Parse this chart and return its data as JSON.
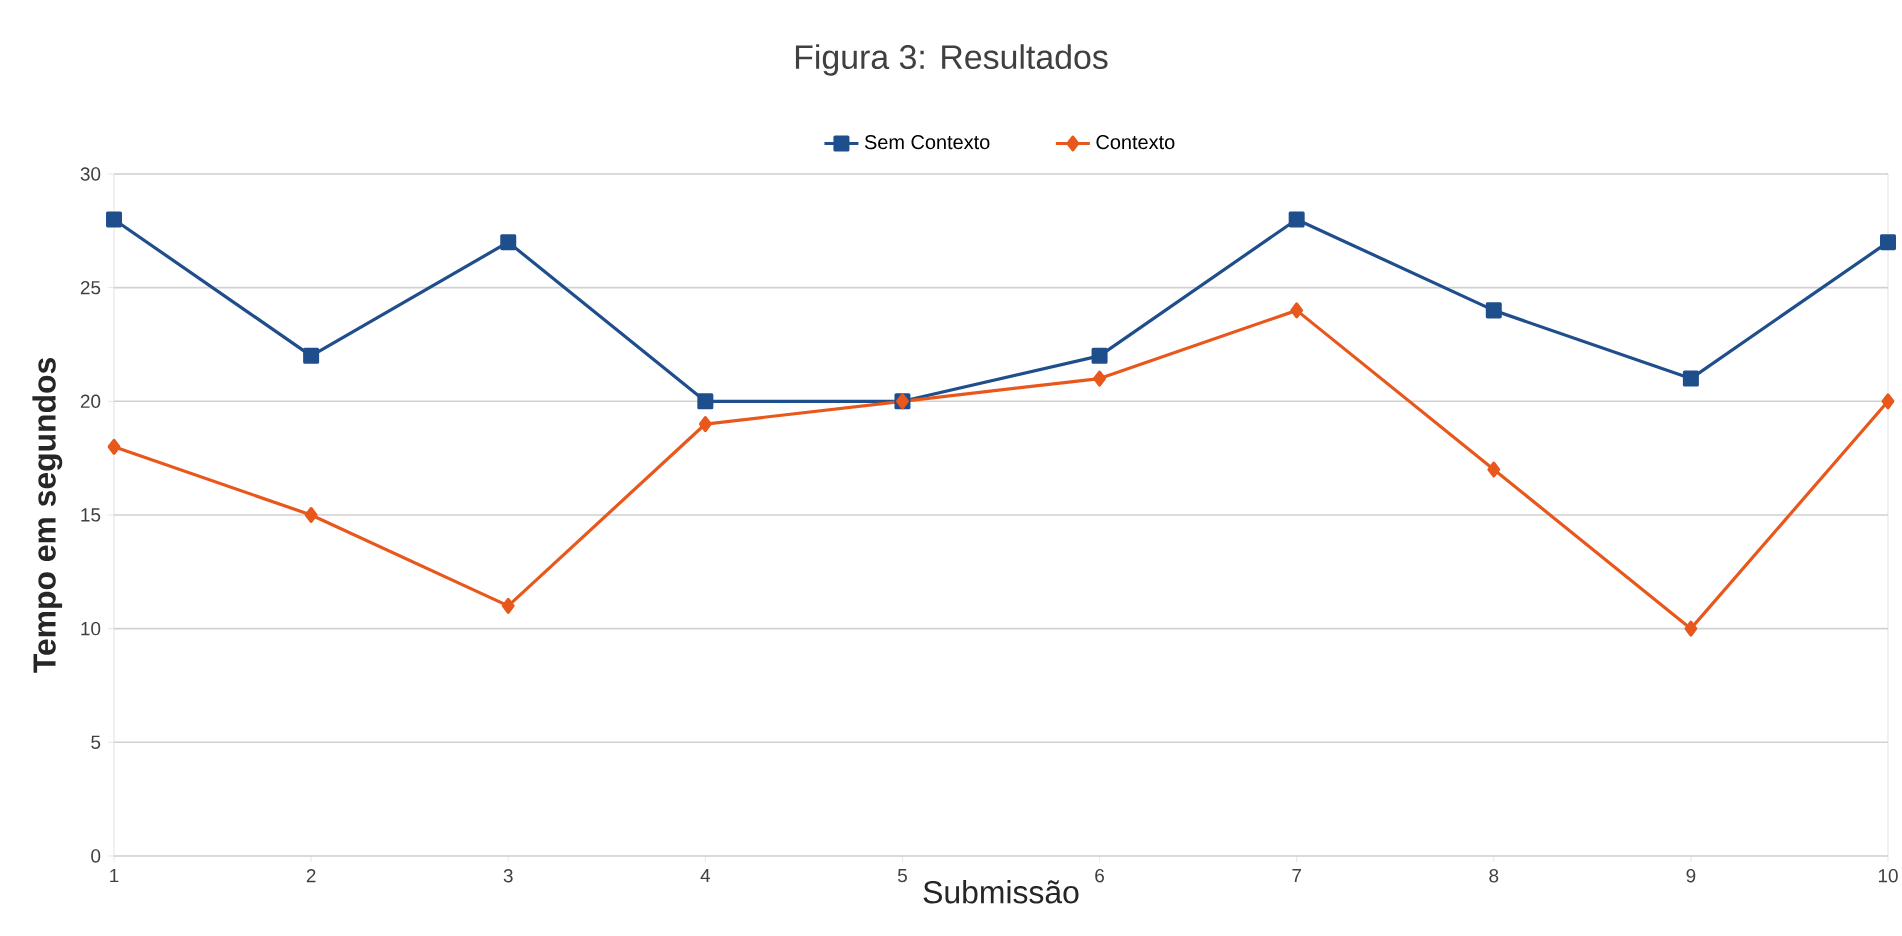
{
  "chart_data": {
    "type": "line",
    "title": "Figura 3: Resultados",
    "xlabel": "Submissão",
    "ylabel": "Tempo em segundos",
    "x": [
      1,
      2,
      3,
      4,
      5,
      6,
      7,
      8,
      9,
      10
    ],
    "series": [
      {
        "name": "Sem Contexto",
        "color": "#1f4e8c",
        "marker": "square",
        "values": [
          28,
          22,
          27,
          20,
          20,
          22,
          28,
          24,
          21,
          27
        ]
      },
      {
        "name": "Contexto",
        "color": "#e8581c",
        "marker": "diamond",
        "values": [
          18,
          15,
          11,
          19,
          20,
          21,
          24,
          17,
          10,
          20
        ]
      }
    ],
    "xlim": [
      1,
      10
    ],
    "xticks": [
      1,
      2,
      3,
      4,
      5,
      6,
      7,
      8,
      9,
      10
    ],
    "ylim": [
      0,
      30
    ],
    "yticks": [
      0,
      5,
      10,
      15,
      20,
      25,
      30
    ],
    "grid": "y",
    "legend": "top",
    "line_style": "solid"
  }
}
